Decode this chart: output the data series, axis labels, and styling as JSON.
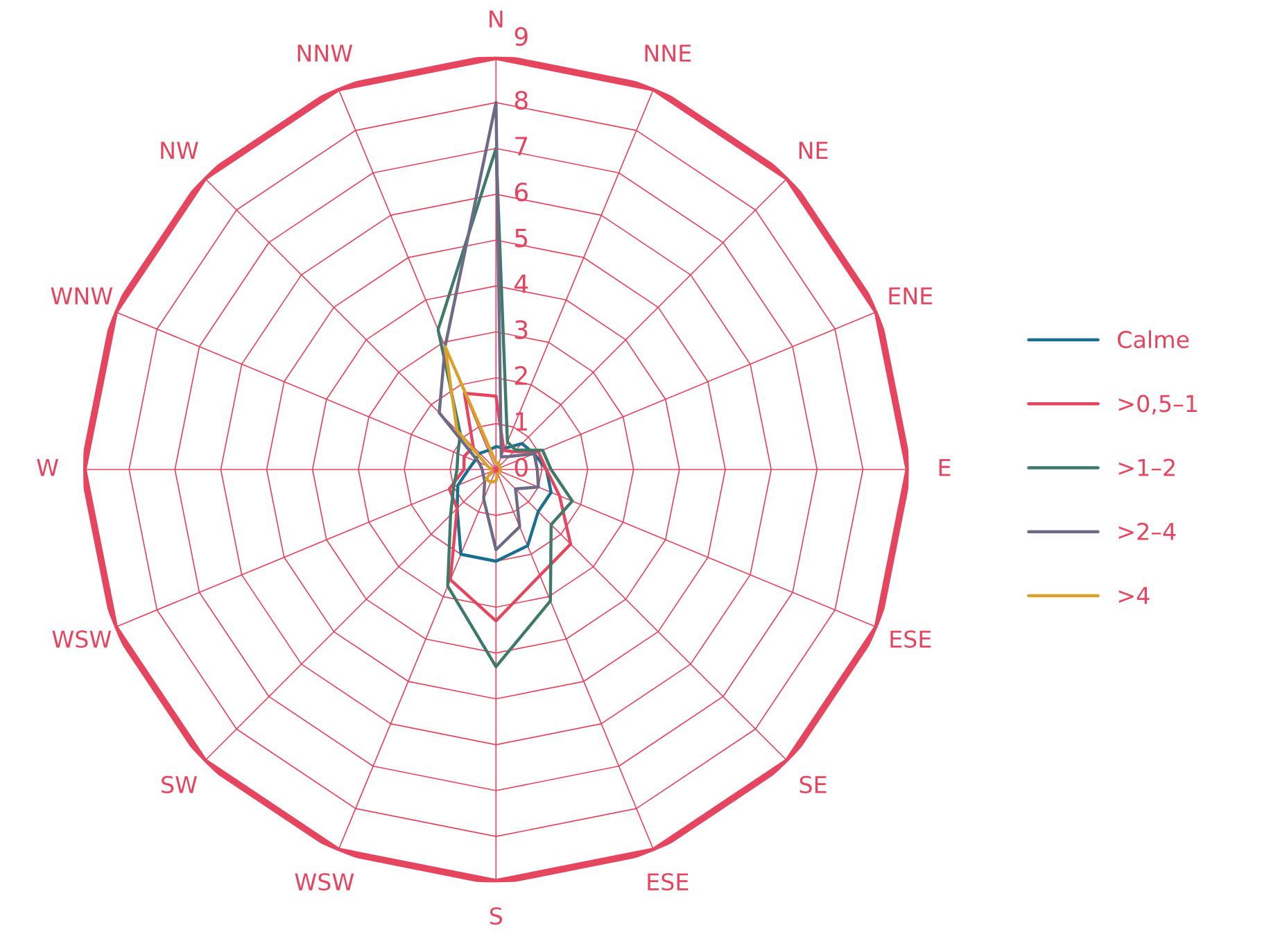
{
  "chart_data": {
    "type": "radar",
    "categories": [
      "N",
      "NNE",
      "NE",
      "ENE",
      "E",
      "ESE",
      "SE",
      "ESE",
      "S",
      "WSW",
      "SW",
      "WSW",
      "W",
      "WNW",
      "NW",
      "NNW"
    ],
    "series": [
      {
        "name": "Calme",
        "color": "#1a6e8e",
        "values": [
          0.5,
          0.5,
          0.8,
          0.9,
          1.1,
          1.3,
          1.3,
          1.8,
          2.0,
          2.0,
          1.2,
          0.9,
          0.6,
          0.5,
          0.5,
          0.45
        ]
      },
      {
        "name": ">0,5–1",
        "color": "#e5455e",
        "values": [
          1.6,
          0.45,
          0.55,
          1.0,
          1.1,
          1.5,
          2.3,
          2.5,
          3.3,
          2.6,
          1.2,
          1.1,
          0.7,
          0.75,
          0.7,
          1.8
        ]
      },
      {
        "name": ">1–2",
        "color": "#3e7a6a",
        "values": [
          7.0,
          0.65,
          0.6,
          1.1,
          1.2,
          1.8,
          1.7,
          3.1,
          4.3,
          2.75,
          1.4,
          1.0,
          0.85,
          0.9,
          1.1,
          3.3
        ]
      },
      {
        "name": ">2–4",
        "color": "#6d6a86",
        "values": [
          8.0,
          0.3,
          0.4,
          0.9,
          0.9,
          1.0,
          0.6,
          1.35,
          1.75,
          0.7,
          0.35,
          0.3,
          0.3,
          0.4,
          1.75,
          2.9
        ]
      },
      {
        "name": ">4",
        "color": "#d9a12a",
        "values": [
          0.15,
          0.15,
          0.1,
          0.1,
          0.1,
          0.1,
          0.1,
          0.1,
          0.25,
          0.3,
          0.3,
          0.1,
          0.1,
          0.2,
          1.2,
          2.9
        ]
      }
    ],
    "ylim": [
      0,
      9
    ],
    "yticks": [
      0,
      1,
      2,
      3,
      4,
      5,
      6,
      7,
      8,
      9
    ],
    "grid": true,
    "legend": "right",
    "marker": "none",
    "line_style": "solid"
  }
}
